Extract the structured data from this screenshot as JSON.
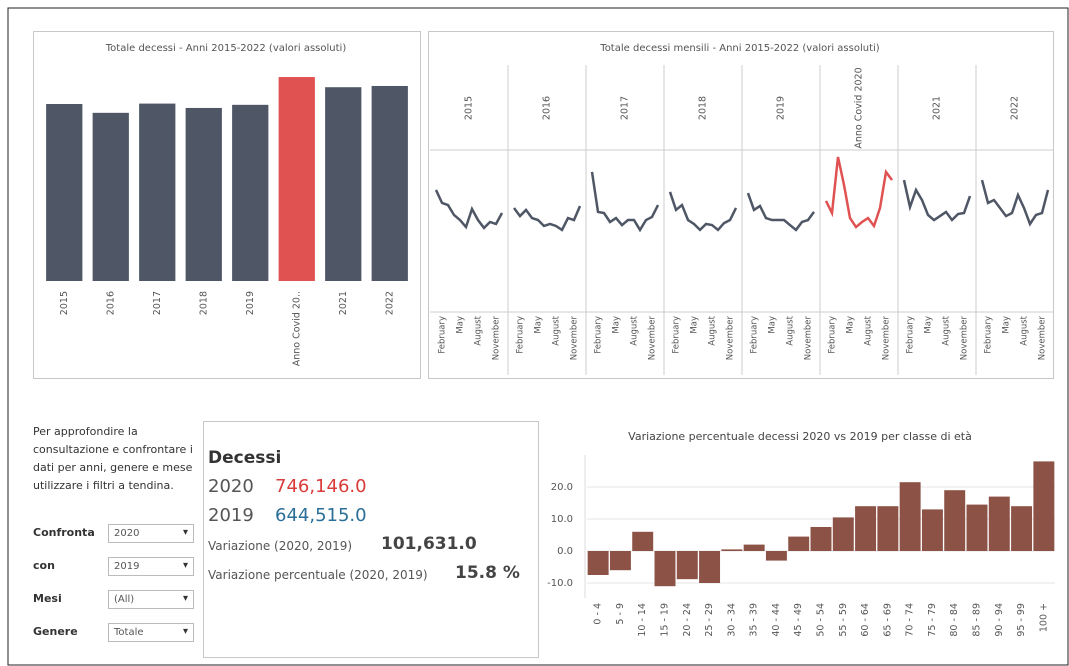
{
  "chart_data": [
    {
      "type": "bar",
      "title": "Totale decessi - Anni 2015-2022 (valori assoluti)",
      "categories": [
        "2015",
        "2016",
        "2017",
        "2018",
        "2019",
        "Anno Covid 20..",
        "2021",
        "2022"
      ],
      "values": [
        647571,
        615261,
        649061,
        633133,
        644515,
        746146,
        709035,
        713499
      ],
      "colors": [
        "#4f5766",
        "#4f5766",
        "#4f5766",
        "#4f5766",
        "#4f5766",
        "#e05252",
        "#4f5766",
        "#4f5766"
      ],
      "ylim": [
        0,
        750000
      ]
    },
    {
      "type": "line",
      "title": "Totale decessi mensili - Anni 2015-2022 (valori assoluti)",
      "categories": [
        null,
        "February",
        null,
        null,
        "May",
        null,
        null,
        "August",
        null,
        null,
        "November",
        null
      ],
      "ylim": [
        0,
        90000
      ],
      "panels": [
        {
          "header": "2015",
          "color": "#4f5766",
          "values": [
            67800,
            60600,
            59400,
            53900,
            51100,
            47200,
            57200,
            51100,
            46700,
            50000,
            48900,
            55000
          ]
        },
        {
          "header": "2016",
          "color": "#4f5766",
          "values": [
            57800,
            53300,
            56700,
            52200,
            51100,
            47800,
            48900,
            47800,
            45600,
            52200,
            51100,
            58900
          ]
        },
        {
          "header": "2017",
          "color": "#4f5766",
          "values": [
            77800,
            55600,
            55000,
            50000,
            52200,
            48300,
            51100,
            51100,
            45600,
            51100,
            52800,
            59400
          ]
        },
        {
          "header": "2018",
          "color": "#4f5766",
          "values": [
            66700,
            56700,
            59400,
            51100,
            48900,
            45600,
            48900,
            48300,
            45600,
            49400,
            51100,
            57800
          ]
        },
        {
          "header": "2019",
          "color": "#4f5766",
          "values": [
            66100,
            56700,
            58900,
            52200,
            51100,
            51100,
            51100,
            48300,
            45600,
            50000,
            51100,
            55600
          ]
        },
        {
          "header": "Anno Covid 2020",
          "color": "#e05252",
          "values": [
            61700,
            55000,
            86100,
            70600,
            52200,
            47200,
            50000,
            52200,
            47800,
            57800,
            77800,
            73300
          ]
        },
        {
          "header": "2021",
          "color": "#4f5766",
          "values": [
            73300,
            58300,
            67800,
            62200,
            53900,
            51100,
            53300,
            55600,
            51100,
            54400,
            55000,
            64400
          ]
        },
        {
          "header": "2022",
          "color": "#4f5766",
          "values": [
            73300,
            60600,
            62200,
            57800,
            53300,
            55000,
            65000,
            57800,
            48900,
            53900,
            55000,
            67800
          ]
        }
      ]
    },
    {
      "type": "bar",
      "title": "Variazione percentuale decessi 2020 vs 2019 per classe di età",
      "categories": [
        "0 - 4",
        "5 - 9",
        "10 - 14",
        "15 - 19",
        "20 - 24",
        "25 - 29",
        "30 - 34",
        "35 - 39",
        "40 - 44",
        "45 - 49",
        "50 - 54",
        "55 - 59",
        "60 - 64",
        "65 - 69",
        "70 - 74",
        "75 - 79",
        "80 - 84",
        "85 - 89",
        "90 - 94",
        "95 - 99",
        "100 +"
      ],
      "values": [
        -7.5,
        -6,
        6,
        -11,
        -8.8,
        -10,
        0.5,
        2,
        -3,
        4.5,
        7.5,
        10.5,
        14,
        14,
        21.5,
        13,
        19,
        14.5,
        17,
        14,
        28
      ],
      "color": "#8b5245",
      "ylim": [
        -14.5,
        30
      ],
      "yticks": [
        {
          "value": -10,
          "label": "-10.0"
        },
        {
          "value": 0,
          "label": "0.0"
        },
        {
          "value": 10,
          "label": "10.0"
        },
        {
          "value": 20,
          "label": "20.0"
        }
      ],
      "grid": true
    }
  ],
  "panel": {
    "intro": "Per approfondire la consultazione e confrontare i dati per anni, genere e mese utilizzare i filtri a tendina.",
    "filters": [
      {
        "label": "Confronta",
        "value": "2020"
      },
      {
        "label": "con",
        "value": "2019"
      },
      {
        "label": "Mesi",
        "value": "(All)"
      },
      {
        "label": "Genere",
        "value": "Totale"
      }
    ]
  },
  "summary": {
    "title": "Decessi",
    "rows": [
      {
        "year": "2020",
        "value": "746,146.0"
      },
      {
        "year": "2019",
        "value": "644,515.0"
      }
    ],
    "variation_label": "Variazione (2020,  2019)",
    "variation_value": "101,631.0",
    "percent_label": "Variazione percentuale (2020, 2019)",
    "percent_value": "15.8 %"
  }
}
